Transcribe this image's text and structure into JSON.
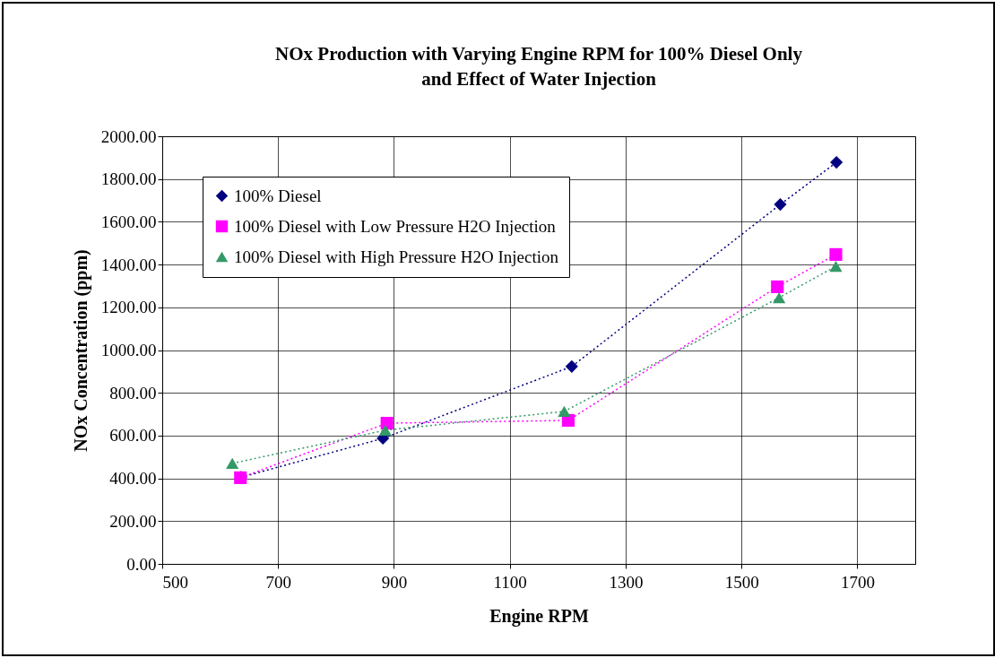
{
  "chart_data": {
    "type": "line",
    "title": "NOx Production with Varying Engine RPM for 100% Diesel Only\nand Effect of Water Injection",
    "xlabel": "Engine RPM",
    "ylabel": "NOx Concentration (ppm)",
    "xlim": [
      500,
      1800
    ],
    "xticks": [
      500,
      700,
      900,
      1100,
      1300,
      1500,
      1700
    ],
    "ylim": [
      0,
      2000
    ],
    "yticks": [
      {
        "value": 0,
        "label": "0.00"
      },
      {
        "value": 200,
        "label": "200.00"
      },
      {
        "value": 400,
        "label": "400.00"
      },
      {
        "value": 600,
        "label": "600.00"
      },
      {
        "value": 800,
        "label": "800.00"
      },
      {
        "value": 1000,
        "label": "1000.00"
      },
      {
        "value": 1200,
        "label": "1200.00"
      },
      {
        "value": 1400,
        "label": "1400.00"
      },
      {
        "value": 1600,
        "label": "1600.00"
      },
      {
        "value": 1800,
        "label": "1800.00"
      },
      {
        "value": 2000,
        "label": "2000.00"
      }
    ],
    "grid": true,
    "legend": "top left",
    "line_style": "dotted",
    "series": [
      {
        "name": "100% Diesel",
        "color": "#000080",
        "marker": "diamond",
        "x": [
          636,
          881,
          1207,
          1567,
          1664
        ],
        "values": [
          405,
          587,
          923,
          1681,
          1878
        ]
      },
      {
        "name": "100% Diesel with Low Pressure H2O Injection",
        "color": "#ff00ff",
        "marker": "square",
        "x": [
          635,
          888,
          1201,
          1562,
          1663
        ],
        "values": [
          403,
          658,
          671,
          1296,
          1447
        ]
      },
      {
        "name": "100% Diesel with High Pressure H2O Injection",
        "color": "#339966",
        "marker": "triangle",
        "x": [
          621,
          885,
          1194,
          1565,
          1663
        ],
        "values": [
          470,
          625,
          713,
          1245,
          1392
        ]
      }
    ]
  }
}
